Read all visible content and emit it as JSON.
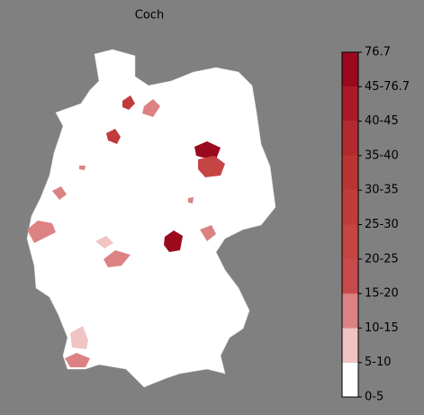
{
  "title": "Coch",
  "colorbar": {
    "labels": [
      "0-5",
      "5-10",
      "10-15",
      "15-20",
      "20-25",
      "25-30",
      "30-35",
      "35-40",
      "40-45",
      "45-76.7",
      "76.7"
    ],
    "colors": [
      "#ffffff",
      "#f0c4c4",
      "#dc8282",
      "#c94a4a",
      "#c54444",
      "#c03c3c",
      "#bb3434",
      "#b32a2e",
      "#aa1b27",
      "#9b0a1c"
    ]
  }
}
